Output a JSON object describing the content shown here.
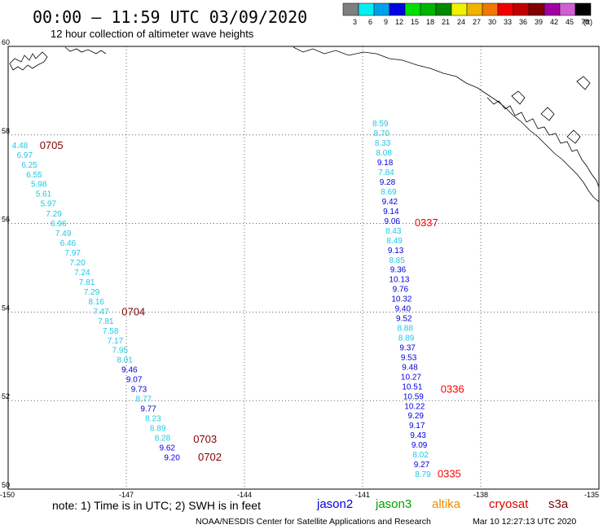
{
  "header": {
    "title": "00:00 – 11:59 UTC 03/09/2020",
    "subtitle": "12 hour collection of altimeter wave heights"
  },
  "legend": {
    "unit": "(ft)",
    "bins": [
      {
        "label": "3",
        "color": "#7f7f7f"
      },
      {
        "label": "6",
        "color": "#00f0f0"
      },
      {
        "label": "9",
        "color": "#00a0e8"
      },
      {
        "label": "12",
        "color": "#0000e0"
      },
      {
        "label": "15",
        "color": "#00e000"
      },
      {
        "label": "18",
        "color": "#00b400"
      },
      {
        "label": "21",
        "color": "#008800"
      },
      {
        "label": "24",
        "color": "#f0f000"
      },
      {
        "label": "27",
        "color": "#f0b400"
      },
      {
        "label": "30",
        "color": "#f07800"
      },
      {
        "label": "33",
        "color": "#f00000"
      },
      {
        "label": "36",
        "color": "#c00000"
      },
      {
        "label": "39",
        "color": "#800000"
      },
      {
        "label": "42",
        "color": "#a000a0"
      },
      {
        "label": "45",
        "color": "#d060d0"
      },
      {
        "label": "70",
        "color": "#000000"
      }
    ]
  },
  "map": {
    "lat_range": [
      50,
      60
    ],
    "lon_range": [
      -150,
      -135
    ],
    "lat_ticks": [
      "50",
      "52",
      "54",
      "56",
      "58",
      "60"
    ],
    "lon_ticks": [
      "-150",
      "-147",
      "-144",
      "-141",
      "-138",
      "-135"
    ],
    "colors": {
      "cyan": "#1ec8e6",
      "blue": "#0000e0",
      "time_red": "#ff0000",
      "time_dark": "#800000",
      "coast": "#000000"
    },
    "tracks": [
      {
        "name": "west-track",
        "points": [
          {
            "lat": 57.76,
            "lon": -149.7,
            "v": "4.48",
            "c": "cyan"
          },
          {
            "lat": 57.54,
            "lon": -149.58,
            "v": "6.97",
            "c": "cyan"
          },
          {
            "lat": 57.32,
            "lon": -149.46,
            "v": "6.25",
            "c": "cyan"
          },
          {
            "lat": 57.1,
            "lon": -149.34,
            "v": "6.55",
            "c": "cyan"
          },
          {
            "lat": 56.88,
            "lon": -149.22,
            "v": "5.98",
            "c": "cyan"
          },
          {
            "lat": 56.66,
            "lon": -149.1,
            "v": "5.61",
            "c": "cyan"
          },
          {
            "lat": 56.44,
            "lon": -148.98,
            "v": "5.97",
            "c": "cyan"
          },
          {
            "lat": 56.21,
            "lon": -148.84,
            "v": "7.29",
            "c": "cyan"
          },
          {
            "lat": 55.99,
            "lon": -148.72,
            "v": "6.96",
            "c": "cyan"
          },
          {
            "lat": 55.77,
            "lon": -148.6,
            "v": "7.49",
            "c": "cyan"
          },
          {
            "lat": 55.55,
            "lon": -148.48,
            "v": "6.46",
            "c": "cyan"
          },
          {
            "lat": 55.33,
            "lon": -148.36,
            "v": "7.97",
            "c": "cyan"
          },
          {
            "lat": 55.11,
            "lon": -148.24,
            "v": "7.20",
            "c": "cyan"
          },
          {
            "lat": 54.89,
            "lon": -148.12,
            "v": "7.24",
            "c": "cyan"
          },
          {
            "lat": 54.67,
            "lon": -148.0,
            "v": "7.81",
            "c": "cyan"
          },
          {
            "lat": 54.45,
            "lon": -147.88,
            "v": "7.29",
            "c": "cyan"
          },
          {
            "lat": 54.23,
            "lon": -147.76,
            "v": "8.16",
            "c": "cyan"
          },
          {
            "lat": 54.01,
            "lon": -147.64,
            "v": "7.47",
            "c": "cyan"
          },
          {
            "lat": 53.79,
            "lon": -147.52,
            "v": "7.81",
            "c": "cyan"
          },
          {
            "lat": 53.57,
            "lon": -147.4,
            "v": "7.58",
            "c": "cyan"
          },
          {
            "lat": 53.35,
            "lon": -147.28,
            "v": "7.17",
            "c": "cyan"
          },
          {
            "lat": 53.13,
            "lon": -147.16,
            "v": "7.95",
            "c": "cyan"
          },
          {
            "lat": 52.91,
            "lon": -147.04,
            "v": "8.01",
            "c": "cyan"
          },
          {
            "lat": 52.69,
            "lon": -146.92,
            "v": "9.46",
            "c": "blue"
          },
          {
            "lat": 52.47,
            "lon": -146.8,
            "v": "9.07",
            "c": "blue"
          },
          {
            "lat": 52.25,
            "lon": -146.68,
            "v": "9.73",
            "c": "blue"
          },
          {
            "lat": 52.03,
            "lon": -146.56,
            "v": "8.77",
            "c": "cyan"
          },
          {
            "lat": 51.81,
            "lon": -146.44,
            "v": "9.77",
            "c": "blue"
          },
          {
            "lat": 51.59,
            "lon": -146.32,
            "v": "8.23",
            "c": "cyan"
          },
          {
            "lat": 51.37,
            "lon": -146.2,
            "v": "8.89",
            "c": "cyan"
          },
          {
            "lat": 51.15,
            "lon": -146.08,
            "v": "8.28",
            "c": "cyan"
          },
          {
            "lat": 50.93,
            "lon": -145.96,
            "v": "9.62",
            "c": "blue"
          },
          {
            "lat": 50.71,
            "lon": -145.84,
            "v": "9.20",
            "c": "blue"
          }
        ],
        "times": [
          {
            "lat": 57.76,
            "lon": -148.9,
            "t": "0705",
            "c": "time_dark"
          },
          {
            "lat": 54.0,
            "lon": -146.82,
            "t": "0704",
            "c": "time_dark"
          },
          {
            "lat": 51.12,
            "lon": -145.0,
            "t": "0703",
            "c": "time_dark"
          },
          {
            "lat": 50.72,
            "lon": -144.88,
            "t": "0702",
            "c": "time_dark"
          }
        ]
      },
      {
        "name": "east-track",
        "points": [
          {
            "lat": 58.25,
            "lon": -140.55,
            "v": "8.59",
            "c": "cyan"
          },
          {
            "lat": 58.03,
            "lon": -140.52,
            "v": "8.70",
            "c": "cyan"
          },
          {
            "lat": 57.81,
            "lon": -140.49,
            "v": "8.33",
            "c": "cyan"
          },
          {
            "lat": 57.59,
            "lon": -140.46,
            "v": "8.08",
            "c": "cyan"
          },
          {
            "lat": 57.37,
            "lon": -140.43,
            "v": "9.18",
            "c": "blue"
          },
          {
            "lat": 57.15,
            "lon": -140.4,
            "v": "7.84",
            "c": "cyan"
          },
          {
            "lat": 56.93,
            "lon": -140.37,
            "v": "9.28",
            "c": "blue"
          },
          {
            "lat": 56.71,
            "lon": -140.34,
            "v": "8.69",
            "c": "cyan"
          },
          {
            "lat": 56.49,
            "lon": -140.31,
            "v": "9.42",
            "c": "blue"
          },
          {
            "lat": 56.27,
            "lon": -140.28,
            "v": "9.14",
            "c": "blue"
          },
          {
            "lat": 56.05,
            "lon": -140.25,
            "v": "9.06",
            "c": "blue"
          },
          {
            "lat": 55.83,
            "lon": -140.22,
            "v": "8.43",
            "c": "cyan"
          },
          {
            "lat": 55.61,
            "lon": -140.19,
            "v": "8.49",
            "c": "cyan"
          },
          {
            "lat": 55.39,
            "lon": -140.16,
            "v": "9.13",
            "c": "blue"
          },
          {
            "lat": 55.17,
            "lon": -140.13,
            "v": "8.85",
            "c": "cyan"
          },
          {
            "lat": 54.95,
            "lon": -140.1,
            "v": "9.36",
            "c": "blue"
          },
          {
            "lat": 54.73,
            "lon": -140.07,
            "v": "10.13",
            "c": "blue"
          },
          {
            "lat": 54.51,
            "lon": -140.04,
            "v": "9.76",
            "c": "blue"
          },
          {
            "lat": 54.29,
            "lon": -140.01,
            "v": "10.32",
            "c": "blue"
          },
          {
            "lat": 54.07,
            "lon": -139.98,
            "v": "9.40",
            "c": "blue"
          },
          {
            "lat": 53.85,
            "lon": -139.95,
            "v": "9.52",
            "c": "blue"
          },
          {
            "lat": 53.63,
            "lon": -139.92,
            "v": "8.88",
            "c": "cyan"
          },
          {
            "lat": 53.41,
            "lon": -139.89,
            "v": "8.89",
            "c": "cyan"
          },
          {
            "lat": 53.19,
            "lon": -139.86,
            "v": "9.37",
            "c": "blue"
          },
          {
            "lat": 52.97,
            "lon": -139.83,
            "v": "9.53",
            "c": "blue"
          },
          {
            "lat": 52.75,
            "lon": -139.8,
            "v": "9.48",
            "c": "blue"
          },
          {
            "lat": 52.53,
            "lon": -139.77,
            "v": "10.27",
            "c": "blue"
          },
          {
            "lat": 52.31,
            "lon": -139.74,
            "v": "10.51",
            "c": "blue"
          },
          {
            "lat": 52.09,
            "lon": -139.71,
            "v": "10.59",
            "c": "blue"
          },
          {
            "lat": 51.87,
            "lon": -139.68,
            "v": "10.22",
            "c": "blue"
          },
          {
            "lat": 51.65,
            "lon": -139.65,
            "v": "9.29",
            "c": "blue"
          },
          {
            "lat": 51.43,
            "lon": -139.62,
            "v": "9.17",
            "c": "blue"
          },
          {
            "lat": 51.21,
            "lon": -139.59,
            "v": "9.43",
            "c": "blue"
          },
          {
            "lat": 50.99,
            "lon": -139.56,
            "v": "9.09",
            "c": "blue"
          },
          {
            "lat": 50.77,
            "lon": -139.53,
            "v": "8.02",
            "c": "cyan"
          },
          {
            "lat": 50.55,
            "lon": -139.5,
            "v": "9.27",
            "c": "blue"
          },
          {
            "lat": 50.33,
            "lon": -139.47,
            "v": "8.79",
            "c": "cyan"
          }
        ],
        "times": [
          {
            "lat": 56.01,
            "lon": -139.38,
            "t": "0337",
            "c": "time_red"
          },
          {
            "lat": 52.25,
            "lon": -138.72,
            "t": "0336",
            "c": "time_red"
          },
          {
            "lat": 50.34,
            "lon": -138.8,
            "t": "0335",
            "c": "time_red"
          }
        ]
      }
    ]
  },
  "footer": {
    "note": "note:  1) Time is in UTC;  2) SWH is in feet",
    "satellites": [
      {
        "label": "jason2",
        "color": "#0000e0"
      },
      {
        "label": "jason3",
        "color": "#00a000"
      },
      {
        "label": "altika",
        "color": "#f08c00"
      },
      {
        "label": "cryosat",
        "color": "#e00000"
      },
      {
        "label": "s3a",
        "color": "#800000"
      }
    ],
    "credit": "NOAA/NESDIS Center for Satellite Applications and Research",
    "timestamp": "Mar 10 12:27:13 UTC 2020"
  }
}
